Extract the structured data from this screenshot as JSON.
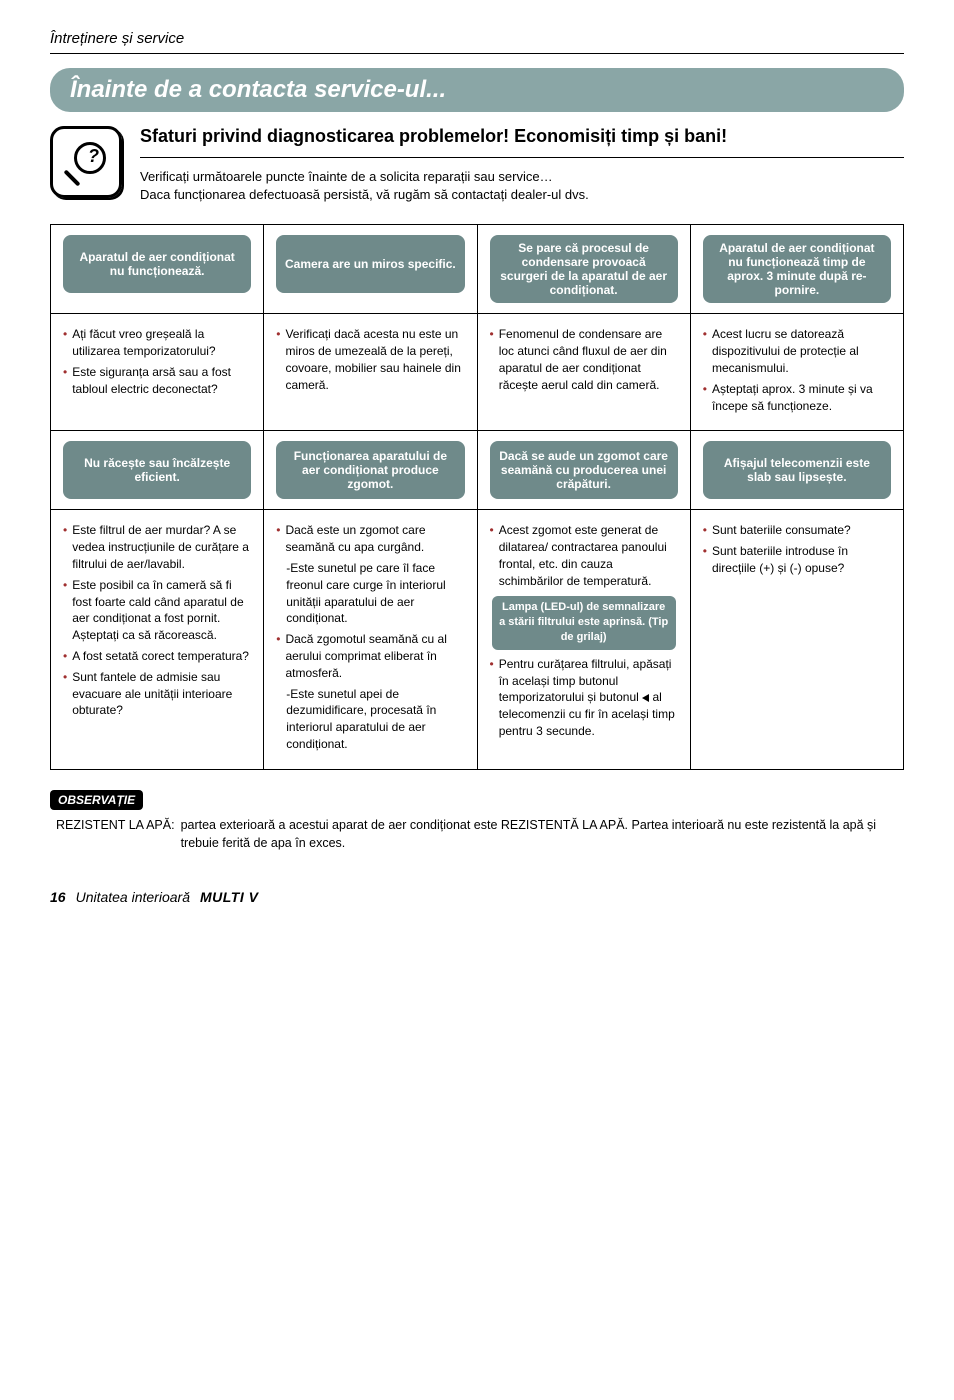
{
  "page_header": "Întreținere și service",
  "title_bar": "Înainte de a contacta service-ul...",
  "lead": {
    "title": "Sfaturi privind diagnosticarea problemelor! Economisiți timp și bani!",
    "desc1": "Verificați următoarele puncte înainte de a solicita reparații sau service…",
    "desc2": "Daca funcționarea defectuoasă persistă, vă rugăm să contactați dealer-ul dvs."
  },
  "colors": {
    "pill_bg": "#6f8a8a",
    "pill_text": "#ffffff",
    "bullet": "#a03030"
  },
  "grid": {
    "rows": [
      {
        "headers": [
          "Aparatul de aer condiționat nu funcționează.",
          "Camera are un miros specific.",
          "Se pare că procesul de condensare provoacă scurgeri de la aparatul de aer condiționat.",
          "Aparatul de aer condiționat nu funcționează timp de aprox. 3 minute după re-pornire."
        ],
        "bodies": [
          [
            "Ați făcut vreo greșeală la utilizarea temporizatorului?",
            "Este siguranța arsă sau a fost tabloul electric deconectat?"
          ],
          [
            "Verificați dacă acesta nu este un miros de umezeală de la pereți, covoare, mobilier sau hainele din cameră."
          ],
          [
            "Fenomenul de condensare are loc atunci când fluxul de aer din aparatul de aer condiționat răcește aerul cald din cameră."
          ],
          [
            "Acest lucru se datorează dispozitivului de protecție al mecanismului.",
            "Așteptați aprox. 3 minute și va începe să funcționeze."
          ]
        ]
      },
      {
        "headers": [
          "Nu răcește sau încălzește eficient.",
          "Funcționarea aparatului de aer condiționat produce zgomot.",
          "Dacă se aude un zgomot care seamănă cu producerea unei crăpături.",
          "Afișajul telecomenzii este slab sau lipsește."
        ],
        "bodies": [
          [
            "Este filtrul de aer murdar? A se vedea instrucțiunile de curățare a filtrului de aer/lavabil.",
            "Este posibil ca în cameră să fi fost foarte cald când aparatul de aer condiționat a fost pornit. Așteptați ca să răcorească.",
            "A fost setată corect temperatura?",
            "Sunt fantele de admisie sau evacuare ale unității interioare obturate?"
          ],
          [
            "Dacă este un zgomot care seamănă cu apa curgând.",
            "-Este sunetul pe care îl face freonul care curge în interiorul unității aparatului de aer condiționat.",
            "Dacă zgomotul seamănă cu al aerului comprimat eliberat în atmosferă.",
            "-Este sunetul apei de dezumidificare, procesată în interiorul aparatului de aer condiționat."
          ],
          [
            "Acest zgomot este generat de dilatarea/ contractarea panoului frontal, etc. din cauza schimbărilor de temperatură.",
            {
              "sub_pill": "Lampa (LED-ul) de semnalizare a stării filtrului este aprinsă. (Tip de grilaj)"
            },
            "Pentru curățarea filtrului, apăsați în același timp butonul temporizatorului și butonul ◀ al telecomenzii cu fir în același timp pentru 3 secunde."
          ],
          [
            "Sunt bateriile consumate?",
            "Sunt bateriile introduse în direcțiile (+) și (-) opuse?"
          ]
        ]
      }
    ]
  },
  "note": {
    "label": "OBSERVAȚIE",
    "entry_label": "REZISTENT LA APĂ:",
    "entry_text": "partea exterioară a acestui aparat de aer condiționat este REZISTENTĂ LA APĂ. Partea interioară nu este rezistentă la apă și trebuie ferită de apa în exces."
  },
  "footer": {
    "page": "16",
    "text": "Unitatea interioară",
    "brand": "MULTI V"
  }
}
